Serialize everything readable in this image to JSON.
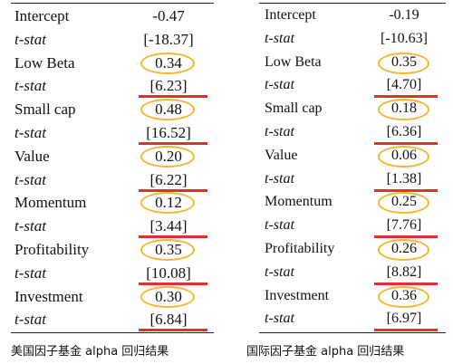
{
  "left_table": {
    "rows": [
      {
        "label": "Intercept",
        "value": "-0.47",
        "tstat": "[-18.37]"
      },
      {
        "label": "Low Beta",
        "value": "0.34",
        "tstat": "[6.23]"
      },
      {
        "label": "Small cap",
        "value": "0.48",
        "tstat": "[16.52]"
      },
      {
        "label": "Value",
        "value": "0.20",
        "tstat": "[6.22]"
      },
      {
        "label": "Momentum",
        "value": "0.12",
        "tstat": "[3.44]"
      },
      {
        "label": "Profitability",
        "value": "0.35",
        "tstat": "[10.08]"
      },
      {
        "label": "Investment",
        "value": "0.30",
        "tstat": "[6.84]"
      }
    ],
    "tstat_label": "t-stat",
    "caption": "美国因子基金 alpha 回归结果"
  },
  "right_table": {
    "rows": [
      {
        "label": "Intercept",
        "value": "-0.19",
        "tstat": "[-10.63]"
      },
      {
        "label": "Low Beta",
        "value": "0.35",
        "tstat": "[4.70]"
      },
      {
        "label": "Small cap",
        "value": "0.18",
        "tstat": "[6.36]"
      },
      {
        "label": "Value",
        "value": "0.06",
        "tstat": "[1.38]"
      },
      {
        "label": "Momentum",
        "value": "0.25",
        "tstat": "[7.76]"
      },
      {
        "label": "Profitability",
        "value": "0.26",
        "tstat": "[8.82]"
      },
      {
        "label": "Investment",
        "value": "0.36",
        "tstat": "[6.97]"
      }
    ],
    "tstat_label": "t-stat",
    "caption": "国际因子基金 alpha 回归结果"
  },
  "highlight_colors": {
    "circle": "#f2b632",
    "underline": "#e0302f"
  }
}
